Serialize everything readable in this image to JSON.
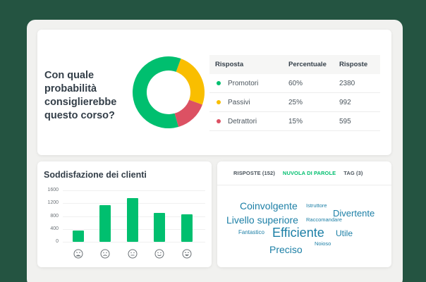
{
  "colors": {
    "background": "#245441",
    "frame": "#f1f1ef",
    "promotori": "#00bf6f",
    "passivi": "#f9be00",
    "detrattori": "#dc5163",
    "bar": "#00bf6f",
    "active_tab": "#00bf6f",
    "cloud_text": "#1c7fa6"
  },
  "nps_card": {
    "question": "Con quale probabilità consiglierebbe questo corso?",
    "table": {
      "headers": [
        "Risposta",
        "Percentuale",
        "Risposte"
      ],
      "rows": [
        {
          "label": "Promotori",
          "percent": "60%",
          "count": "2380",
          "color": "#00bf6f"
        },
        {
          "label": "Passivi",
          "percent": "25%",
          "count": "992",
          "color": "#f9be00"
        },
        {
          "label": "Detrattori",
          "percent": "15%",
          "count": "595",
          "color": "#dc5163"
        }
      ]
    }
  },
  "satisfaction_card": {
    "title": "Soddisfazione dei clienti",
    "y_ticks": [
      "1600",
      "1200",
      "800",
      "400",
      "0"
    ],
    "categories": [
      "very-dissatisfied-face-icon",
      "dissatisfied-face-icon",
      "neutral-face-icon",
      "satisfied-face-icon",
      "very-satisfied-face-icon"
    ]
  },
  "cloud_card": {
    "tabs": [
      {
        "label": "RISPOSTE (152)",
        "active": false
      },
      {
        "label": "NUVOLA DI PAROLE",
        "active": true
      },
      {
        "label": "TAG (3)",
        "active": false
      }
    ],
    "words": [
      {
        "text": "Coinvolgente",
        "size": 14
      },
      {
        "text": "Istruttore",
        "size": 7.5
      },
      {
        "text": "Divertente",
        "size": 13
      },
      {
        "text": "Livello superiore",
        "size": 14
      },
      {
        "text": "Raccomandare",
        "size": 7.5
      },
      {
        "text": "Fantastico",
        "size": 8
      },
      {
        "text": "Efficiente",
        "size": 18
      },
      {
        "text": "Utile",
        "size": 12
      },
      {
        "text": "Noioso",
        "size": 7.5
      },
      {
        "text": "Preciso",
        "size": 14
      }
    ]
  },
  "chart_data": [
    {
      "type": "pie",
      "title": "Con quale probabilità consiglierebbe questo corso?",
      "categories": [
        "Promotori",
        "Passivi",
        "Detrattori"
      ],
      "values": [
        60,
        25,
        15
      ],
      "counts": [
        2380,
        992,
        595
      ],
      "colors": [
        "#00bf6f",
        "#f9be00",
        "#dc5163"
      ],
      "donut": true
    },
    {
      "type": "bar",
      "title": "Soddisfazione dei clienti",
      "categories": [
        "Molto insoddisfatto",
        "Insoddisfatto",
        "Neutrale",
        "Soddisfatto",
        "Molto soddisfatto"
      ],
      "values": [
        350,
        1130,
        1350,
        900,
        860
      ],
      "xlabel": "",
      "ylabel": "",
      "ylim": [
        0,
        1600
      ],
      "yticks": [
        0,
        400,
        800,
        1200,
        1600
      ],
      "grid": true
    }
  ]
}
